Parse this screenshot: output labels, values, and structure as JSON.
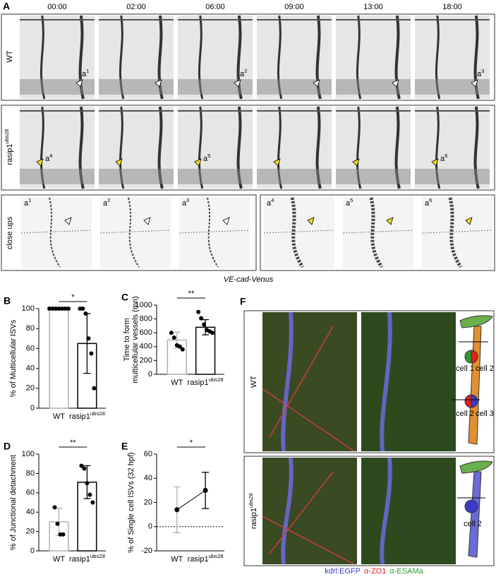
{
  "figure": {
    "panel_a": {
      "label": "A",
      "timepoints": [
        "00:00",
        "02:00",
        "06:00",
        "09:00",
        "13:00",
        "18:00"
      ],
      "row_labels": [
        {
          "text": "WT"
        },
        {
          "text": "rasip1",
          "sup": "ubs28"
        }
      ],
      "arrow_labels_wt": [
        {
          "text": "a",
          "sup": "1"
        },
        {
          "text": "a",
          "sup": "2"
        },
        {
          "text": "a",
          "sup": "3"
        }
      ],
      "arrow_labels_mut": [
        {
          "text": "a",
          "sup": "4"
        },
        {
          "text": "a",
          "sup": "5"
        },
        {
          "text": "a",
          "sup": "6"
        }
      ],
      "closeups_label": "close ups",
      "closeups": [
        {
          "text": "a",
          "sup": "1"
        },
        {
          "text": "a",
          "sup": "2"
        },
        {
          "text": "a",
          "sup": "3"
        },
        {
          "text": "a",
          "sup": "4"
        },
        {
          "text": "a",
          "sup": "5"
        },
        {
          "text": "a",
          "sup": "6"
        }
      ],
      "caption": "VE-cad-Venus"
    },
    "panel_f": {
      "label": "F",
      "row_labels": [
        {
          "text": "WT"
        },
        {
          "text": "rasip1",
          "sup": "ubs28"
        }
      ],
      "cells_wt": [
        "cell 1",
        "cell 2",
        "cell 2",
        "cell 3"
      ],
      "cells_mut": [
        "cell 2"
      ],
      "legend": [
        {
          "text": "kdrl:EGFP",
          "color": "#3a3ac8"
        },
        {
          "text": "α-ZO1",
          "color": "#e02020"
        },
        {
          "text": "α-ESAMa",
          "color": "#2f9a2f"
        }
      ]
    }
  },
  "chart_data": [
    {
      "type": "bar",
      "label": "B",
      "y_label": [
        "% of Multicellular ISVs"
      ],
      "categories": [
        {
          "text": "WT"
        },
        {
          "text": "rasip1",
          "sup": "ubs28"
        }
      ],
      "values": [
        100,
        65
      ],
      "errors": [
        0,
        30
      ],
      "colors": [
        "#b0b0b0",
        "#000000"
      ],
      "points": [
        [
          100,
          100,
          100,
          100,
          100,
          100,
          100
        ],
        [
          100,
          100,
          95,
          70,
          55,
          20
        ]
      ],
      "significance": "*",
      "ylim": [
        0,
        100
      ],
      "yticks": [
        0,
        20,
        40,
        60,
        80,
        100
      ]
    },
    {
      "type": "bar",
      "label": "C",
      "y_label": [
        "Time to form",
        "multicellular vessels (mn)"
      ],
      "categories": [
        {
          "text": "WT"
        },
        {
          "text": "rasip1",
          "sup": "ubs28"
        }
      ],
      "values": [
        495,
        680
      ],
      "errors": [
        115,
        110
      ],
      "colors": [
        "#b0b0b0",
        "#000000"
      ],
      "points": [
        [
          600,
          530,
          420,
          400,
          360
        ],
        [
          900,
          810,
          720,
          640,
          620,
          600
        ]
      ],
      "significance": "**",
      "ylim": [
        0,
        1000
      ],
      "yticks": [
        0,
        200,
        400,
        600,
        800,
        1000
      ]
    },
    {
      "type": "bar",
      "label": "D",
      "y_label": [
        "% of Junctional detachment"
      ],
      "categories": [
        {
          "text": "WT"
        },
        {
          "text": "rasip1",
          "sup": "ubs28"
        }
      ],
      "values": [
        30,
        71
      ],
      "errors": [
        14,
        17
      ],
      "colors": [
        "#b0b0b0",
        "#000000"
      ],
      "points": [
        [
          45,
          28,
          17,
          17
        ],
        [
          88,
          85,
          70,
          58,
          50
        ]
      ],
      "significance": "**",
      "ylim": [
        0,
        100
      ],
      "yticks": [
        0,
        20,
        40,
        60,
        80,
        100
      ]
    },
    {
      "type": "point",
      "label": "E",
      "y_label": [
        "% of Single cell ISVs (32 hpf)"
      ],
      "categories": [
        {
          "text": "WT"
        },
        {
          "text": "rasip1",
          "sup": "ubs28"
        }
      ],
      "values": [
        14,
        30
      ],
      "errors": [
        19,
        15
      ],
      "colors": [
        "#b0b0b0",
        "#000000"
      ],
      "zero_line": true,
      "significance": "*",
      "ylim": [
        -20,
        60
      ],
      "yticks": [
        -20,
        0,
        20,
        40,
        60
      ]
    }
  ]
}
